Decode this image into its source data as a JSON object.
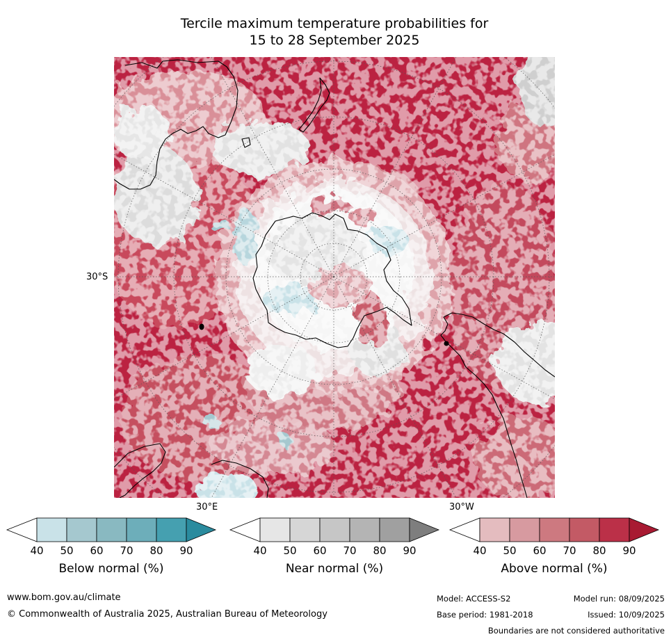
{
  "title": {
    "line1": "Tercile maximum temperature probabilities for",
    "line2": "15 to 28 September 2025"
  },
  "map": {
    "lat_label": "30°S",
    "lon_label_east": "30°E",
    "lon_label_west": "30°W"
  },
  "colorbars": [
    {
      "label": "Below normal (%)",
      "ticks": [
        "40",
        "50",
        "60",
        "70",
        "80",
        "90"
      ],
      "colors": [
        "#ffffff",
        "#c9e2e8",
        "#a5c8cf",
        "#89b9c1",
        "#6daeba",
        "#45a0b0",
        "#2a8b9e"
      ]
    },
    {
      "label": "Near normal (%)",
      "ticks": [
        "40",
        "50",
        "60",
        "70",
        "80",
        "90"
      ],
      "colors": [
        "#ffffff",
        "#e6e6e6",
        "#d6d6d6",
        "#c6c6c6",
        "#b4b4b4",
        "#a0a0a0",
        "#7e7e7e"
      ]
    },
    {
      "label": "Above normal (%)",
      "ticks": [
        "40",
        "50",
        "60",
        "70",
        "80",
        "90"
      ],
      "colors": [
        "#ffffff",
        "#e4bcbf",
        "#d79aa0",
        "#cd7980",
        "#c35a65",
        "#bb3048",
        "#a81a32"
      ]
    }
  ],
  "footer": {
    "website": "www.bom.gov.au/climate",
    "copyright": "© Commonwealth of Australia 2025, Australian Bureau of Meteorology",
    "model": "Model: ACCESS-S2",
    "base_period": "Base period: 1981-2018",
    "model_run": "Model run: 08/09/2025",
    "issued": "Issued: 10/09/2025",
    "disclaimer": "Boundaries are not considered authoritative"
  }
}
